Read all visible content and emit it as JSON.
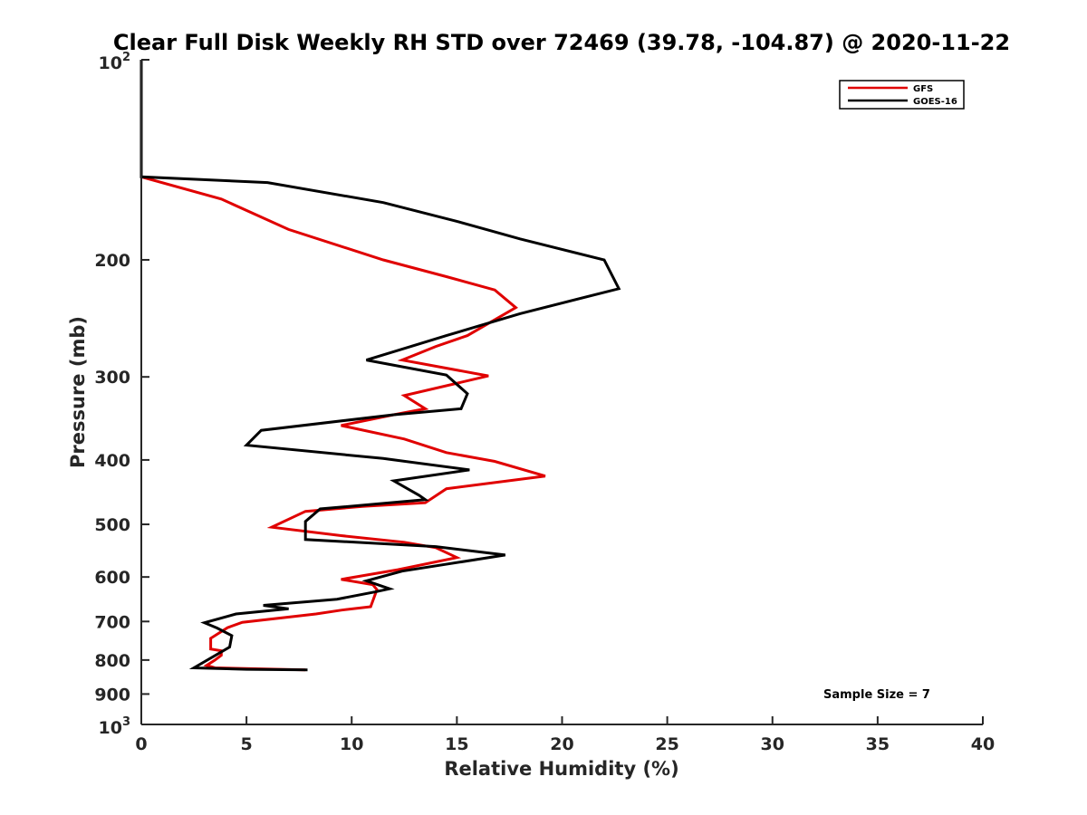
{
  "chart_data": {
    "type": "line",
    "title": "Clear Full Disk Weekly RH STD over 72469 (39.78, -104.87) @ 2020-11-22",
    "xlabel": "Relative Humidity (%)",
    "ylabel": "Pressure (mb)",
    "xlim": [
      0,
      40
    ],
    "ylim": [
      100,
      1000
    ],
    "y_scale": "log",
    "y_reversed": true,
    "x_ticks": [
      "0",
      "5",
      "10",
      "15",
      "20",
      "25",
      "30",
      "35",
      "40"
    ],
    "y_ticks": [
      {
        "value": 200,
        "label": "200"
      },
      {
        "value": 300,
        "label": "300"
      },
      {
        "value": 400,
        "label": "400"
      },
      {
        "value": 500,
        "label": "500"
      },
      {
        "value": 600,
        "label": "600"
      },
      {
        "value": 700,
        "label": "700"
      },
      {
        "value": 800,
        "label": "800"
      },
      {
        "value": 900,
        "label": "900"
      }
    ],
    "y_end_labels": {
      "top": {
        "value": 100,
        "base": "10",
        "exp": "2"
      },
      "bottom": {
        "value": 1000,
        "base": "10",
        "exp": "3"
      }
    },
    "grid": false,
    "legend_position": "top-right",
    "series": [
      {
        "name": "GFS",
        "color": "#e00000",
        "points": [
          [
            0,
            100
          ],
          [
            0,
            125
          ],
          [
            0,
            150
          ],
          [
            3.8,
            162
          ],
          [
            7,
            180
          ],
          [
            11.5,
            200
          ],
          [
            14.5,
            212
          ],
          [
            16.8,
            222
          ],
          [
            17.8,
            236
          ],
          [
            15.5,
            260
          ],
          [
            14,
            270
          ],
          [
            12.4,
            283
          ],
          [
            16.5,
            299
          ],
          [
            12.5,
            320
          ],
          [
            13.5,
            335
          ],
          [
            12,
            342
          ],
          [
            9.5,
            355
          ],
          [
            12.5,
            372
          ],
          [
            14.5,
            390
          ],
          [
            16.8,
            402
          ],
          [
            19.2,
            423
          ],
          [
            14.5,
            442
          ],
          [
            13.5,
            464
          ],
          [
            10.5,
            470
          ],
          [
            7.8,
            478
          ],
          [
            6.2,
            505
          ],
          [
            9.5,
            520
          ],
          [
            12.5,
            532
          ],
          [
            14,
            542
          ],
          [
            15,
            561
          ],
          [
            12.2,
            585
          ],
          [
            9.5,
            605
          ],
          [
            11,
            616
          ],
          [
            11.2,
            627
          ],
          [
            10.9,
            665
          ],
          [
            9.5,
            673
          ],
          [
            8.3,
            682
          ],
          [
            4.8,
            702
          ],
          [
            4.1,
            715
          ],
          [
            3.3,
            742
          ],
          [
            3.3,
            770
          ],
          [
            3.8,
            775
          ],
          [
            3.8,
            787
          ],
          [
            3.5,
            800
          ],
          [
            3.1,
            815
          ],
          [
            3.5,
            822
          ],
          [
            7.8,
            828
          ]
        ]
      },
      {
        "name": "GOES-16",
        "color": "#000000",
        "points": [
          [
            0,
            100
          ],
          [
            0,
            125
          ],
          [
            0,
            150
          ],
          [
            6,
            153
          ],
          [
            11.5,
            164
          ],
          [
            15,
            175
          ],
          [
            18,
            186
          ],
          [
            22,
            200
          ],
          [
            22.7,
            221
          ],
          [
            18,
            241
          ],
          [
            14.5,
            260
          ],
          [
            10.7,
            283
          ],
          [
            14.5,
            298
          ],
          [
            15.5,
            318
          ],
          [
            15.2,
            335
          ],
          [
            12,
            342
          ],
          [
            5.7,
            361
          ],
          [
            5,
            380
          ],
          [
            11.5,
            398
          ],
          [
            15.6,
            414
          ],
          [
            12,
            430
          ],
          [
            13.2,
            452
          ],
          [
            13.5,
            459
          ],
          [
            8.5,
            474
          ],
          [
            7.8,
            495
          ],
          [
            7.8,
            527
          ],
          [
            14,
            540
          ],
          [
            17.3,
            556
          ],
          [
            12.4,
            588
          ],
          [
            10.7,
            608
          ],
          [
            11.8,
            625
          ],
          [
            11.1,
            632
          ],
          [
            9.3,
            648
          ],
          [
            5.8,
            662
          ],
          [
            7,
            670
          ],
          [
            4.5,
            682
          ],
          [
            3,
            703
          ],
          [
            3.6,
            716
          ],
          [
            4.3,
            735
          ],
          [
            4.2,
            765
          ],
          [
            2.5,
            822
          ],
          [
            5,
            826
          ],
          [
            7.9,
            828
          ]
        ]
      }
    ],
    "annotations": [
      {
        "text": "Sample Size = 7",
        "x": 36,
        "y": 890
      }
    ]
  }
}
